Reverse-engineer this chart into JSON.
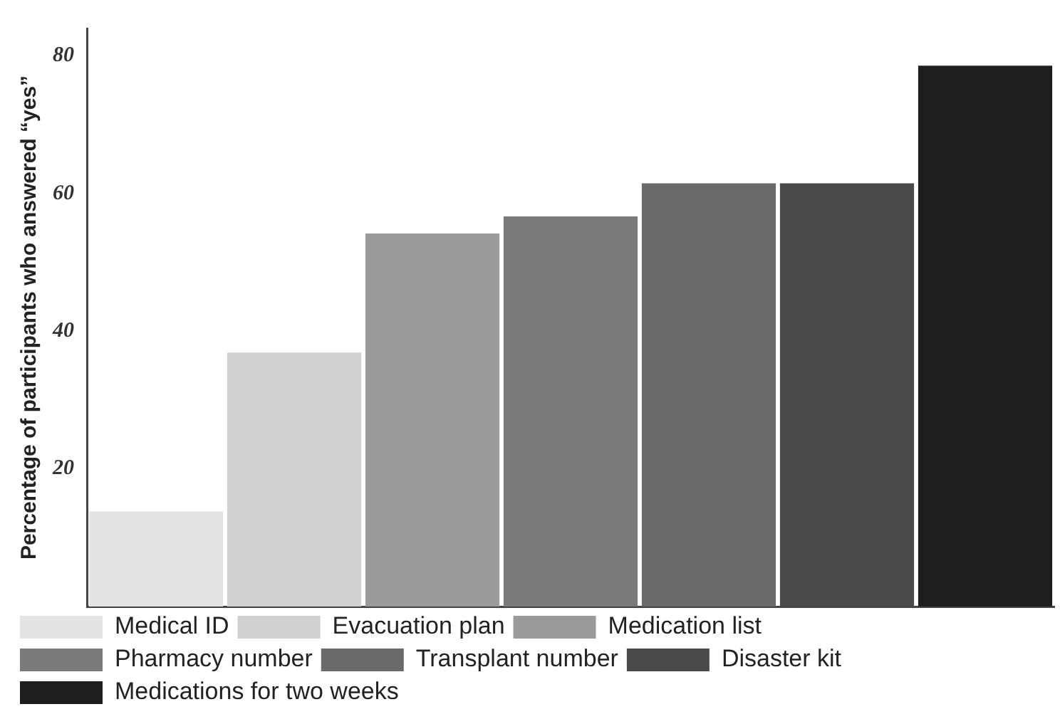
{
  "chart_data": {
    "type": "bar",
    "ylabel": "Percentage of participants who answered “yes”",
    "categories": [
      null,
      null,
      null,
      null,
      null,
      null,
      null
    ],
    "series": [
      {
        "name": "Medical ID",
        "color": "#e4e4e4",
        "values": [
          13.8,
          null,
          null,
          null,
          null,
          null,
          null
        ]
      },
      {
        "name": "Evacuation plan",
        "color": "#d0d0d0",
        "values": [
          null,
          36.9,
          null,
          null,
          null,
          null,
          null
        ]
      },
      {
        "name": "Medication list",
        "color": "#9a9a9a",
        "values": [
          null,
          null,
          54.2,
          null,
          null,
          null,
          null
        ]
      },
      {
        "name": "Pharmacy number",
        "color": "#7a7a7a",
        "values": [
          null,
          null,
          null,
          56.7,
          null,
          null,
          null
        ]
      },
      {
        "name": "Transplant number",
        "color": "#6a6a6a",
        "values": [
          null,
          null,
          null,
          null,
          61.5,
          null,
          null
        ]
      },
      {
        "name": "Disaster kit",
        "color": "#4a4a4a",
        "values": [
          null,
          null,
          null,
          null,
          null,
          61.5,
          null
        ]
      },
      {
        "name": "Medications for two weeks",
        "color": "#1e1e1e",
        "values": [
          null,
          null,
          null,
          null,
          null,
          null,
          78.6
        ]
      }
    ],
    "ylim": [
      0,
      84
    ],
    "yticks": [
      20,
      40,
      60,
      80
    ],
    "tick_labels": "y",
    "grid": false,
    "legend": "bottom"
  }
}
